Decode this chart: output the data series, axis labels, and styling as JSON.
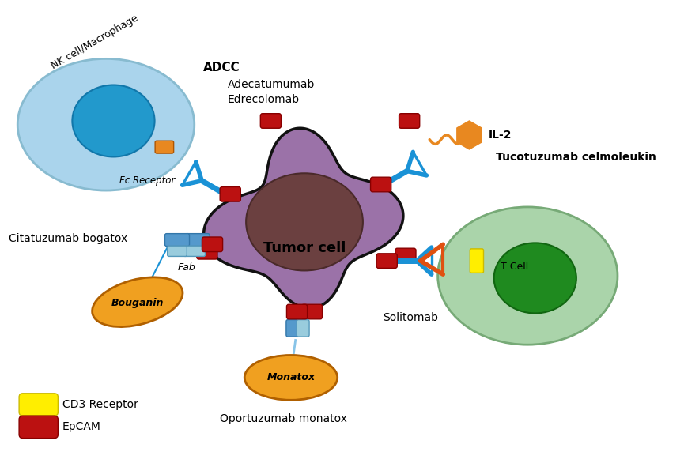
{
  "bg_color": "#ffffff",
  "tumor_color": "#9b72a8",
  "tumor_outline": "#111111",
  "nucleus_color": "#6b4040",
  "nk_outer": "#aad4ec",
  "nk_inner": "#2299cc",
  "t_outer": "#aad4aa",
  "t_inner": "#1f8a1f",
  "epcam_color": "#bb1111",
  "cd3_color": "#ffee00",
  "ab_blue": "#1a92d6",
  "ab_lightblue": "#88c4e8",
  "orange": "#e88820",
  "soli_orange": "#e05010",
  "fab_blue": "#5599cc",
  "fab_lightblue": "#99ccdd",
  "bouganin_color": "#f0a020",
  "monatox_color": "#f0a020",
  "label_adcc": "ADCC",
  "label_adeca": "Adecatumumab",
  "label_edrec": "Edrecolomab",
  "label_il2": "IL-2",
  "label_tuco": "Tucotuzumab celmoleukin",
  "label_fcr": "Fc Receptor",
  "label_tumor": "Tumor cell",
  "label_citat": "Citatuzumab bogatox",
  "label_fab": "Fab",
  "label_boug": "Bouganin",
  "label_monat": "Monatox",
  "label_oport": "Oportuzumab monatox",
  "label_solit": "Solitomab",
  "label_tcell": "T Cell",
  "label_nk": "NK cell/Macrophage",
  "label_cd3": "CD3 Receptor",
  "label_epcam": "EpCAM"
}
